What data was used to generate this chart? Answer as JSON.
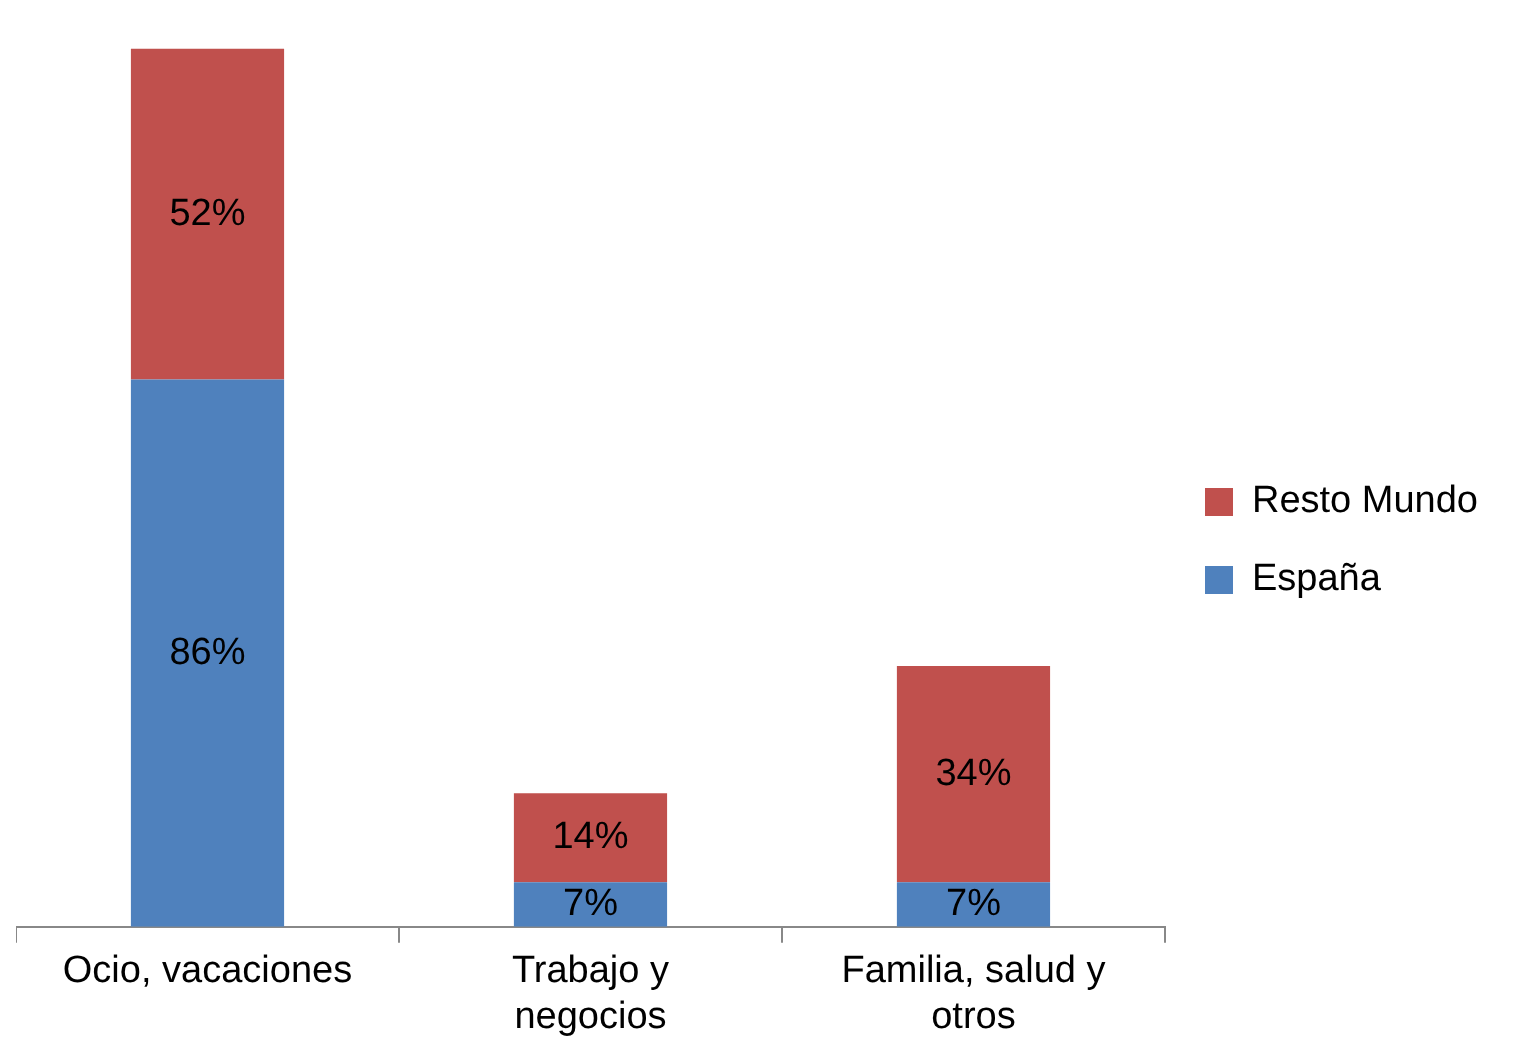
{
  "chart_data": {
    "type": "bar",
    "stacked": true,
    "categories": [
      "Ocio, vacaciones",
      "Trabajo y negocios",
      "Familia, salud y otros"
    ],
    "series": [
      {
        "name": "España",
        "color": "#4f81bd",
        "values": [
          86,
          7,
          7
        ],
        "value_labels": [
          "86%",
          "7%",
          "7%"
        ]
      },
      {
        "name": "Resto Mundo",
        "color": "#c0504d",
        "values": [
          52,
          14,
          34
        ],
        "value_labels": [
          "52%",
          "14%",
          "34%"
        ]
      }
    ],
    "legend": "right",
    "grid": false
  }
}
